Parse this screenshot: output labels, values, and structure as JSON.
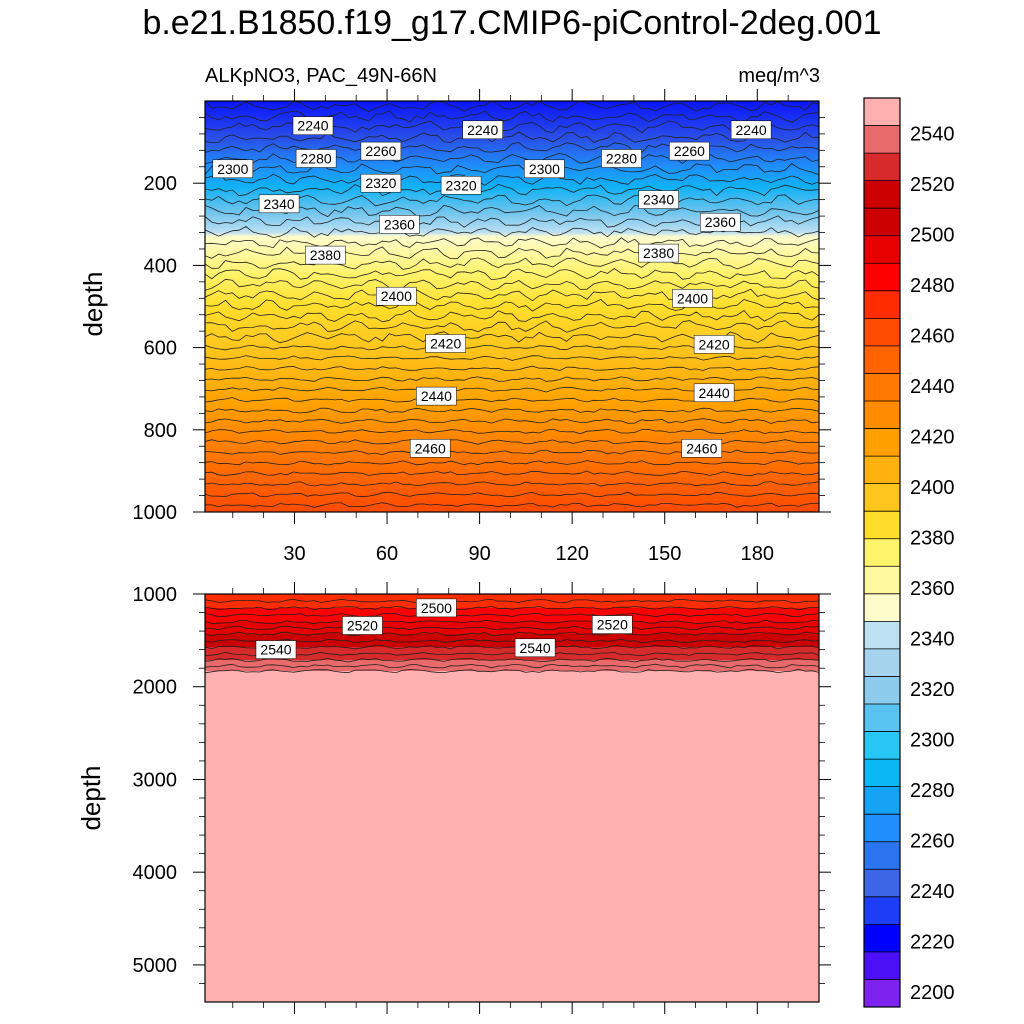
{
  "title": "b.e21.B1850.f19_g17.CMIP6-piControl-2deg.001",
  "chart_data": {
    "type": "heatmap",
    "variable": "ALKpNO3",
    "region": "PAC_49N-66N",
    "units": "meq/m^3",
    "ylabel": "depth",
    "xlabel": "",
    "x_range": [
      1,
      200
    ],
    "x_ticks": [
      30,
      60,
      90,
      120,
      150,
      180
    ],
    "palette_colors": [
      "#7e22f0",
      "#4c10f6",
      "#0000ff",
      "#1e3ef5",
      "#3c66e6",
      "#2a74ef",
      "#1f8ffb",
      "#16a3f6",
      "#0ab8f6",
      "#27c6f5",
      "#58c2f0",
      "#8ccbec",
      "#a5d3ee",
      "#bde0f2",
      "#fffccc",
      "#fff99e",
      "#fff36b",
      "#ffde2b",
      "#ffc51f",
      "#ffb20f",
      "#ffa000",
      "#ff8c00",
      "#ff7800",
      "#ff6400",
      "#ff4c00",
      "#ff2d00",
      "#ff0000",
      "#e60000",
      "#cc0000",
      "#cc0000",
      "#d72b2b",
      "#e86a6a",
      "#ffb1b1"
    ],
    "colorbar": {
      "labels": [
        "2540",
        "2520",
        "2500",
        "2480",
        "2460",
        "2440",
        "2420",
        "2400",
        "2380",
        "2360",
        "2340",
        "2320",
        "2300",
        "2280",
        "2260",
        "2240",
        "2220",
        "2200"
      ],
      "values": [
        2540,
        2520,
        2500,
        2480,
        2460,
        2440,
        2420,
        2400,
        2380,
        2360,
        2340,
        2320,
        2300,
        2280,
        2260,
        2240,
        2220,
        2200
      ]
    },
    "panels": [
      {
        "name": "upper",
        "ylim": [
          1000,
          0
        ],
        "y_ticks": [
          200,
          400,
          600,
          800,
          1000
        ],
        "contour_labels": [
          {
            "text": "2240",
            "x": 36,
            "y": 60
          },
          {
            "text": "2240",
            "x": 91,
            "y": 70
          },
          {
            "text": "2240",
            "x": 178,
            "y": 70
          },
          {
            "text": "2260",
            "x": 58,
            "y": 122
          },
          {
            "text": "2260",
            "x": 158,
            "y": 122
          },
          {
            "text": "2280",
            "x": 37,
            "y": 140
          },
          {
            "text": "2280",
            "x": 136,
            "y": 140
          },
          {
            "text": "2300",
            "x": 10,
            "y": 165
          },
          {
            "text": "2300",
            "x": 111,
            "y": 165
          },
          {
            "text": "2320",
            "x": 58,
            "y": 200
          },
          {
            "text": "2320",
            "x": 84,
            "y": 205
          },
          {
            "text": "2340",
            "x": 25,
            "y": 250
          },
          {
            "text": "2340",
            "x": 148,
            "y": 240
          },
          {
            "text": "2360",
            "x": 64,
            "y": 300
          },
          {
            "text": "2360",
            "x": 168,
            "y": 295
          },
          {
            "text": "2380",
            "x": 40,
            "y": 375
          },
          {
            "text": "2380",
            "x": 148,
            "y": 370
          },
          {
            "text": "2400",
            "x": 63,
            "y": 475
          },
          {
            "text": "2400",
            "x": 159,
            "y": 480
          },
          {
            "text": "2420",
            "x": 79,
            "y": 590
          },
          {
            "text": "2420",
            "x": 166,
            "y": 592
          },
          {
            "text": "2440",
            "x": 76,
            "y": 718
          },
          {
            "text": "2440",
            "x": 166,
            "y": 710
          },
          {
            "text": "2460",
            "x": 74,
            "y": 845
          },
          {
            "text": "2460",
            "x": 162,
            "y": 845
          }
        ]
      },
      {
        "name": "lower",
        "ylim": [
          5400,
          1000
        ],
        "y_ticks": [
          1000,
          2000,
          3000,
          4000,
          5000
        ],
        "contour_labels": [
          {
            "text": "2500",
            "x": 76,
            "y": 1150
          },
          {
            "text": "2520",
            "x": 52,
            "y": 1340
          },
          {
            "text": "2520",
            "x": 133,
            "y": 1330
          },
          {
            "text": "2540",
            "x": 24,
            "y": 1600
          },
          {
            "text": "2540",
            "x": 108,
            "y": 1580
          }
        ]
      }
    ]
  }
}
